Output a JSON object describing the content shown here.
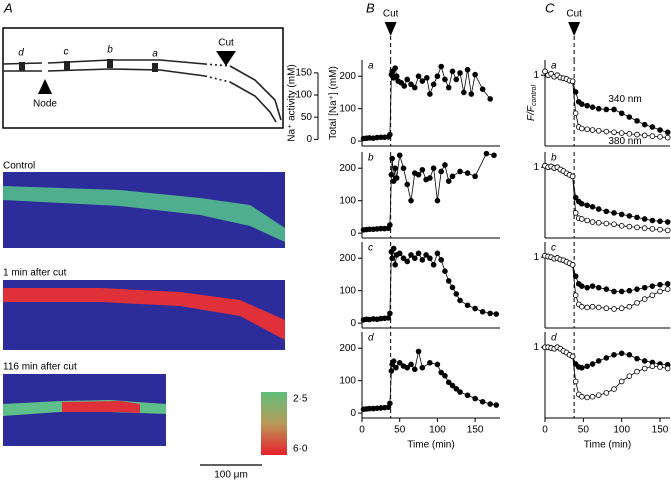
{
  "panel_a": {
    "label": "A",
    "points": [
      "d",
      "c",
      "b",
      "a"
    ],
    "cut": "Cut",
    "node": "Node",
    "images": [
      "Control",
      "1 min after cut",
      "116 min after cut"
    ],
    "colorbar": [
      "2·5",
      "6·0"
    ],
    "scale_bar": "100 μm"
  },
  "column_labels": [
    "B",
    "C"
  ],
  "chart_data": [
    {
      "type": "line",
      "panel": "a",
      "annotation": "Cut",
      "cut_time": 38,
      "ylabel": "Total [Na⁺] (mM)",
      "y2label": "Na⁺ activity (mM)",
      "xlim": [
        0,
        183
      ],
      "ylim": [
        -15,
        250
      ],
      "yticks": [
        0,
        100,
        200
      ],
      "y2lim": [
        -15,
        179
      ],
      "y2ticks": [
        0,
        50,
        100,
        150
      ],
      "x": [
        2,
        6,
        10,
        15,
        20,
        25,
        30,
        35,
        37,
        39,
        40,
        42,
        44,
        46,
        48,
        52,
        56,
        60,
        65,
        70,
        75,
        80,
        86,
        90,
        95,
        100,
        105,
        110,
        115,
        120,
        125,
        130,
        135,
        140,
        145,
        150,
        160,
        170
      ],
      "series": [
        {
          "color": "#000000",
          "marker": "filled",
          "values": [
            8,
            9,
            10,
            9,
            11,
            12,
            12,
            13,
            20,
            205,
            215,
            195,
            225,
            200,
            185,
            180,
            170,
            190,
            175,
            165,
            200,
            185,
            195,
            145,
            175,
            200,
            230,
            190,
            165,
            215,
            190,
            210,
            150,
            220,
            145,
            205,
            160,
            130
          ]
        }
      ]
    },
    {
      "type": "line",
      "panel": "b",
      "cut_time": 38,
      "xlim": [
        0,
        183
      ],
      "ylim": [
        -15,
        250
      ],
      "yticks": [
        0,
        100,
        200
      ],
      "x": [
        2,
        6,
        10,
        15,
        20,
        25,
        30,
        35,
        37,
        39,
        40,
        42,
        44,
        46,
        50,
        55,
        60,
        65,
        70,
        75,
        80,
        85,
        90,
        95,
        100,
        105,
        110,
        115,
        120,
        130,
        140,
        150,
        165,
        175
      ],
      "series": [
        {
          "color": "#000000",
          "marker": "filled",
          "values": [
            10,
            11,
            12,
            12,
            13,
            14,
            14,
            15,
            25,
            180,
            230,
            160,
            200,
            170,
            240,
            200,
            150,
            100,
            185,
            180,
            195,
            165,
            170,
            200,
            100,
            190,
            210,
            160,
            175,
            190,
            185,
            175,
            245,
            240
          ]
        }
      ]
    },
    {
      "type": "line",
      "panel": "c",
      "cut_time": 38,
      "xlim": [
        0,
        183
      ],
      "ylim": [
        -15,
        250
      ],
      "yticks": [
        0,
        100,
        200
      ],
      "x": [
        2,
        6,
        10,
        15,
        20,
        25,
        30,
        35,
        37,
        39,
        40,
        42,
        44,
        46,
        50,
        55,
        60,
        65,
        70,
        75,
        80,
        85,
        90,
        95,
        100,
        105,
        110,
        115,
        120,
        125,
        130,
        140,
        150,
        160,
        170,
        178
      ],
      "series": [
        {
          "color": "#000000",
          "marker": "filled",
          "values": [
            10,
            12,
            11,
            13,
            12,
            14,
            15,
            16,
            30,
            220,
            200,
            230,
            180,
            210,
            215,
            200,
            190,
            210,
            200,
            215,
            195,
            210,
            200,
            180,
            215,
            195,
            160,
            130,
            110,
            90,
            70,
            55,
            45,
            35,
            30,
            28
          ]
        }
      ]
    },
    {
      "type": "line",
      "panel": "d",
      "cut_time": 38,
      "xlim": [
        0,
        183
      ],
      "ylim": [
        -15,
        250
      ],
      "yticks": [
        0,
        100,
        200
      ],
      "xticks": [
        0,
        50,
        100,
        150
      ],
      "xlabel": "Time (min)",
      "x": [
        2,
        6,
        10,
        15,
        20,
        25,
        30,
        35,
        37,
        39,
        40,
        42,
        45,
        50,
        55,
        60,
        65,
        70,
        75,
        80,
        90,
        100,
        105,
        110,
        115,
        120,
        125,
        130,
        140,
        150,
        160,
        170,
        178
      ],
      "series": [
        {
          "color": "#000000",
          "marker": "filled",
          "values": [
            12,
            13,
            14,
            14,
            15,
            16,
            17,
            18,
            30,
            130,
            150,
            160,
            140,
            155,
            145,
            140,
            150,
            135,
            190,
            140,
            155,
            150,
            125,
            115,
            95,
            85,
            75,
            65,
            55,
            45,
            35,
            28,
            25
          ]
        }
      ]
    },
    {
      "type": "line",
      "panel": "a",
      "annotation": "Cut",
      "cut_time": 38,
      "ylabel": "F/F",
      "ylabel_subscript": "control",
      "xlim": [
        0,
        163
      ],
      "ylim": [
        0.07,
        1.2
      ],
      "yticks": [
        1
      ],
      "x": [
        0,
        4,
        8,
        12,
        16,
        20,
        24,
        28,
        32,
        36,
        40,
        44,
        48,
        55,
        62,
        70,
        80,
        90,
        100,
        110,
        120,
        130,
        140,
        150,
        160
      ],
      "series": [
        {
          "name": "340 nm",
          "color": "#000000",
          "marker": "filled",
          "values": [
            1.05,
            1.0,
            1.02,
            0.98,
            1.0,
            0.97,
            0.96,
            0.95,
            0.93,
            0.92,
            0.78,
            0.65,
            0.62,
            0.6,
            0.58,
            0.56,
            0.55,
            0.55,
            0.5,
            0.45,
            0.4,
            0.35,
            0.32,
            0.28,
            0.25
          ]
        },
        {
          "name": "380 nm",
          "color": "#000000",
          "marker": "open",
          "values": [
            1.05,
            1.0,
            1.02,
            0.98,
            1.0,
            0.97,
            0.96,
            0.95,
            0.93,
            0.92,
            0.5,
            0.32,
            0.3,
            0.29,
            0.28,
            0.27,
            0.26,
            0.25,
            0.24,
            0.23,
            0.22,
            0.21,
            0.2,
            0.19,
            0.18
          ]
        }
      ]
    },
    {
      "type": "line",
      "panel": "b",
      "cut_time": 38,
      "xlim": [
        0,
        163
      ],
      "ylim": [
        0.07,
        1.2
      ],
      "yticks": [
        1
      ],
      "x": [
        0,
        4,
        8,
        12,
        16,
        20,
        24,
        28,
        32,
        36,
        40,
        44,
        48,
        55,
        62,
        70,
        80,
        90,
        100,
        110,
        120,
        130,
        140,
        150,
        160
      ],
      "series": [
        {
          "color": "#000000",
          "marker": "filled",
          "values": [
            1.02,
            1.0,
            1.01,
            0.99,
            1.0,
            0.97,
            0.95,
            0.92,
            0.9,
            0.88,
            0.6,
            0.55,
            0.52,
            0.5,
            0.48,
            0.45,
            0.42,
            0.4,
            0.38,
            0.36,
            0.34,
            0.32,
            0.3,
            0.29,
            0.28
          ]
        },
        {
          "color": "#000000",
          "marker": "open",
          "values": [
            1.02,
            1.0,
            1.01,
            0.99,
            1.0,
            0.97,
            0.95,
            0.92,
            0.9,
            0.88,
            0.4,
            0.33,
            0.32,
            0.3,
            0.28,
            0.27,
            0.26,
            0.25,
            0.23,
            0.22,
            0.21,
            0.2,
            0.19,
            0.18,
            0.17
          ]
        }
      ]
    },
    {
      "type": "line",
      "panel": "c",
      "cut_time": 38,
      "xlim": [
        0,
        163
      ],
      "ylim": [
        0.07,
        1.2
      ],
      "yticks": [
        1
      ],
      "x": [
        0,
        4,
        8,
        12,
        16,
        20,
        24,
        28,
        32,
        36,
        40,
        44,
        48,
        55,
        62,
        70,
        80,
        90,
        100,
        110,
        120,
        130,
        140,
        150,
        160
      ],
      "series": [
        {
          "color": "#000000",
          "marker": "filled",
          "values": [
            1.02,
            1.01,
            1.0,
            0.98,
            0.99,
            0.97,
            0.96,
            0.94,
            0.92,
            0.9,
            0.75,
            0.65,
            0.62,
            0.6,
            0.62,
            0.6,
            0.58,
            0.55,
            0.55,
            0.56,
            0.58,
            0.6,
            0.62,
            0.64,
            0.65
          ]
        },
        {
          "color": "#000000",
          "marker": "open",
          "values": [
            1.02,
            1.01,
            1.0,
            0.98,
            0.99,
            0.97,
            0.96,
            0.94,
            0.92,
            0.9,
            0.5,
            0.38,
            0.35,
            0.34,
            0.35,
            0.34,
            0.33,
            0.32,
            0.33,
            0.35,
            0.4,
            0.45,
            0.5,
            0.55,
            0.58
          ]
        }
      ]
    },
    {
      "type": "line",
      "panel": "d",
      "cut_time": 38,
      "xlim": [
        0,
        163
      ],
      "ylim": [
        0.07,
        1.2
      ],
      "yticks": [
        1
      ],
      "xticks": [
        0,
        50,
        100,
        150
      ],
      "xlabel": "Time (min)",
      "x": [
        0,
        4,
        8,
        12,
        16,
        20,
        24,
        28,
        32,
        36,
        40,
        44,
        48,
        55,
        62,
        70,
        80,
        90,
        100,
        110,
        120,
        130,
        140,
        150,
        160
      ],
      "series": [
        {
          "color": "#000000",
          "marker": "filled",
          "values": [
            1.0,
            1.0,
            0.99,
            0.98,
            1.0,
            0.98,
            0.95,
            0.93,
            0.9,
            0.88,
            0.78,
            0.74,
            0.73,
            0.75,
            0.78,
            0.82,
            0.86,
            0.9,
            0.92,
            0.9,
            0.85,
            0.82,
            0.8,
            0.78,
            0.77
          ]
        },
        {
          "color": "#000000",
          "marker": "open",
          "values": [
            1.0,
            1.0,
            0.99,
            0.98,
            1.0,
            0.98,
            0.95,
            0.93,
            0.9,
            0.88,
            0.55,
            0.38,
            0.35,
            0.34,
            0.35,
            0.37,
            0.4,
            0.45,
            0.55,
            0.62,
            0.68,
            0.72,
            0.75,
            0.74,
            0.72
          ]
        }
      ]
    }
  ]
}
